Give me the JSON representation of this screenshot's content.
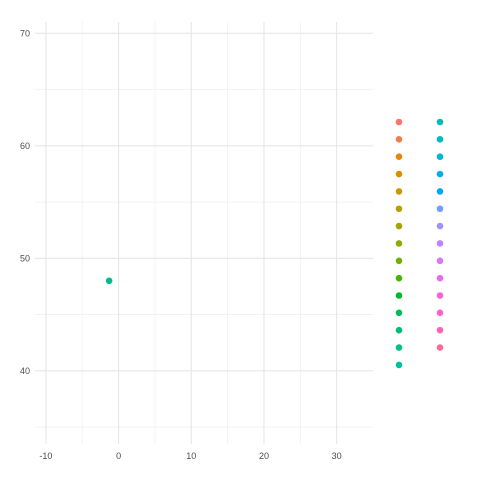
{
  "chart_data": {
    "type": "scatter",
    "title": "",
    "xlabel": "",
    "ylabel": "",
    "xlim": [
      -11.5,
      35
    ],
    "ylim": [
      33.5,
      71
    ],
    "x_ticks": [
      -10,
      0,
      10,
      20,
      30
    ],
    "y_ticks": [
      40,
      50,
      60,
      70
    ],
    "x_minor": [
      -5,
      5,
      15,
      25
    ],
    "y_minor": [
      35,
      45,
      55,
      65
    ],
    "grid": true,
    "legend": "right",
    "points": [
      {
        "x": -1.3,
        "y": 48,
        "color": "#00BA8A"
      }
    ],
    "legend_colors": [
      [
        "#F8766D",
        "#EF7F49",
        "#E48800",
        "#D89000",
        "#C99800",
        "#B99E00",
        "#A5A400",
        "#8FAA00",
        "#72B000",
        "#45B500",
        "#00B932",
        "#00BC55",
        "#00BE70",
        "#00BF88",
        "#00BF9E"
      ],
      [
        "#00BDB2",
        "#00BAC6",
        "#00B6D8",
        "#00AFE8",
        "#00A7F5",
        "#749DFF",
        "#9E91FF",
        "#BE83FF",
        "#D775FB",
        "#EA6AEE",
        "#F763DD",
        "#FF61C9",
        "#FF64B2",
        "#FF6A98"
      ]
    ]
  }
}
